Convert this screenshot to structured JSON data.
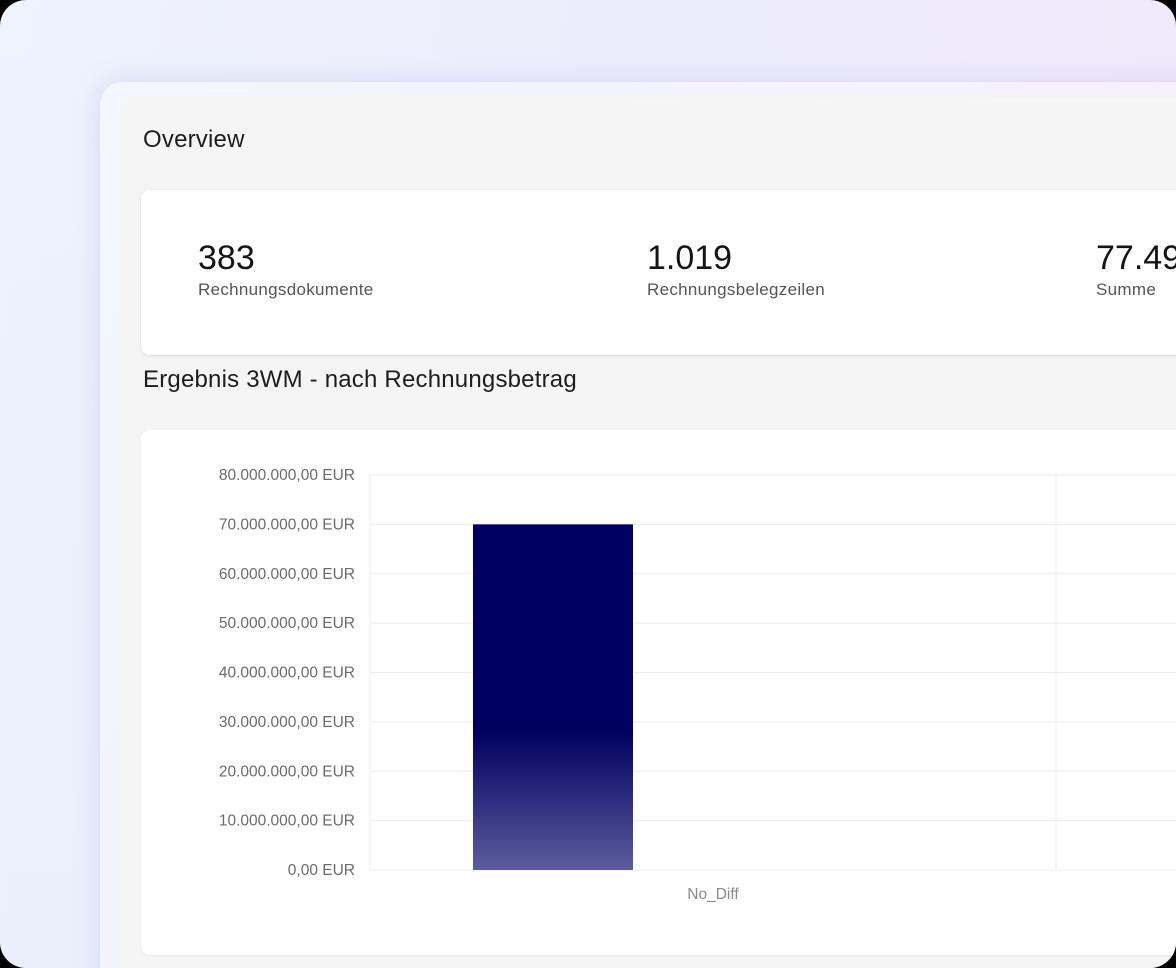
{
  "overview": {
    "title": "Overview"
  },
  "kpis": [
    {
      "value": "383",
      "label": "Rechnungsdokumente"
    },
    {
      "value": "1.019",
      "label": "Rechnungsbelegzeilen"
    },
    {
      "value": "77.49",
      "label": "Summe"
    }
  ],
  "section": {
    "title": "Ergebnis 3WM - nach Rechnungsbetrag"
  },
  "colors": {
    "bar_top": "#000060",
    "bar_bottom": "#5c5c9e",
    "grid": "#ececec"
  },
  "chart_data": {
    "type": "bar",
    "title": "Ergebnis 3WM - nach Rechnungsbetrag",
    "categories": [
      "No_Diff"
    ],
    "values": [
      70000000
    ],
    "ylim": [
      0,
      80000000
    ],
    "yticks": [
      "0,00 EUR",
      "10.000.000,00 EUR",
      "20.000.000,00 EUR",
      "30.000.000,00 EUR",
      "40.000.000,00 EUR",
      "50.000.000,00 EUR",
      "60.000.000,00 EUR",
      "70.000.000,00 EUR",
      "80.000.000,00 EUR"
    ],
    "grid": true,
    "xlabel": "",
    "ylabel": ""
  }
}
